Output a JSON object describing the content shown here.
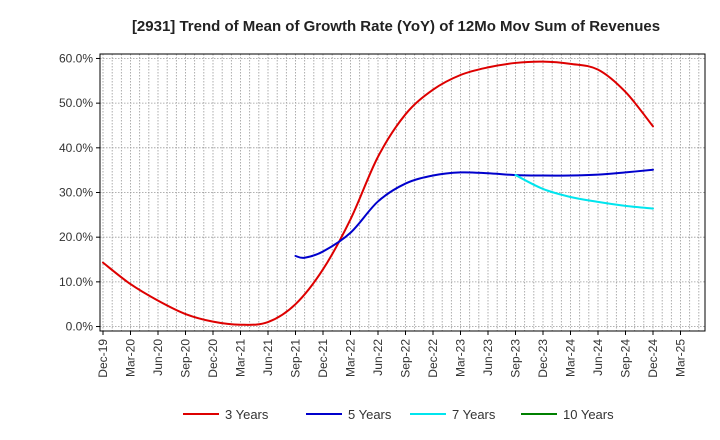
{
  "chart_data": {
    "type": "line",
    "title": "[2931]  Trend of Mean of Growth Rate (YoY) of 12Mo Mov Sum of Revenues",
    "xlabel": "",
    "ylabel": "",
    "x_ticks": [
      "Dec-19",
      "Mar-20",
      "Jun-20",
      "Sep-20",
      "Dec-20",
      "Mar-21",
      "Jun-21",
      "Sep-21",
      "Dec-21",
      "Mar-22",
      "Jun-22",
      "Sep-22",
      "Dec-22",
      "Mar-23",
      "Jun-23",
      "Sep-23",
      "Dec-23",
      "Mar-24",
      "Jun-24",
      "Sep-24",
      "Dec-24",
      "Mar-25"
    ],
    "y_ticks": [
      "0.0%",
      "10.0%",
      "20.0%",
      "30.0%",
      "40.0%",
      "50.0%",
      "60.0%"
    ],
    "ylim": [
      -1,
      61
    ],
    "grid": true,
    "legend_position": "bottom",
    "series": [
      {
        "name": "3 Years",
        "color": "#dd0000",
        "points": [
          [
            0,
            14.3
          ],
          [
            1,
            9.5
          ],
          [
            2,
            5.8
          ],
          [
            3,
            2.8
          ],
          [
            4,
            1.1
          ],
          [
            5,
            0.4
          ],
          [
            6,
            1.0
          ],
          [
            7,
            5.0
          ],
          [
            8,
            12.8
          ],
          [
            9,
            24.0
          ],
          [
            10,
            38.0
          ],
          [
            11,
            47.5
          ],
          [
            12,
            53.0
          ],
          [
            13,
            56.3
          ],
          [
            14,
            58.0
          ],
          [
            15,
            59.0
          ],
          [
            16,
            59.3
          ],
          [
            17,
            58.8
          ],
          [
            18,
            57.5
          ],
          [
            19,
            52.5
          ],
          [
            20,
            44.8
          ]
        ]
      },
      {
        "name": "5 Years",
        "color": "#0000cc",
        "points": [
          [
            7,
            15.8
          ],
          [
            7.33,
            15.4
          ],
          [
            8,
            16.8
          ],
          [
            9,
            21.0
          ],
          [
            10,
            28.0
          ],
          [
            11,
            32.0
          ],
          [
            12,
            33.8
          ],
          [
            13,
            34.5
          ],
          [
            14,
            34.3
          ],
          [
            15,
            33.9
          ],
          [
            16,
            33.8
          ],
          [
            17,
            33.8
          ],
          [
            18,
            34.0
          ],
          [
            19,
            34.5
          ],
          [
            20,
            35.1
          ]
        ]
      },
      {
        "name": "7 Years",
        "color": "#00e5ee",
        "points": [
          [
            15,
            33.9
          ],
          [
            16,
            30.8
          ],
          [
            17,
            29.0
          ],
          [
            18,
            27.9
          ],
          [
            19,
            27.0
          ],
          [
            20,
            26.4
          ]
        ]
      },
      {
        "name": "10 Years",
        "color": "#008000",
        "points": []
      }
    ]
  }
}
